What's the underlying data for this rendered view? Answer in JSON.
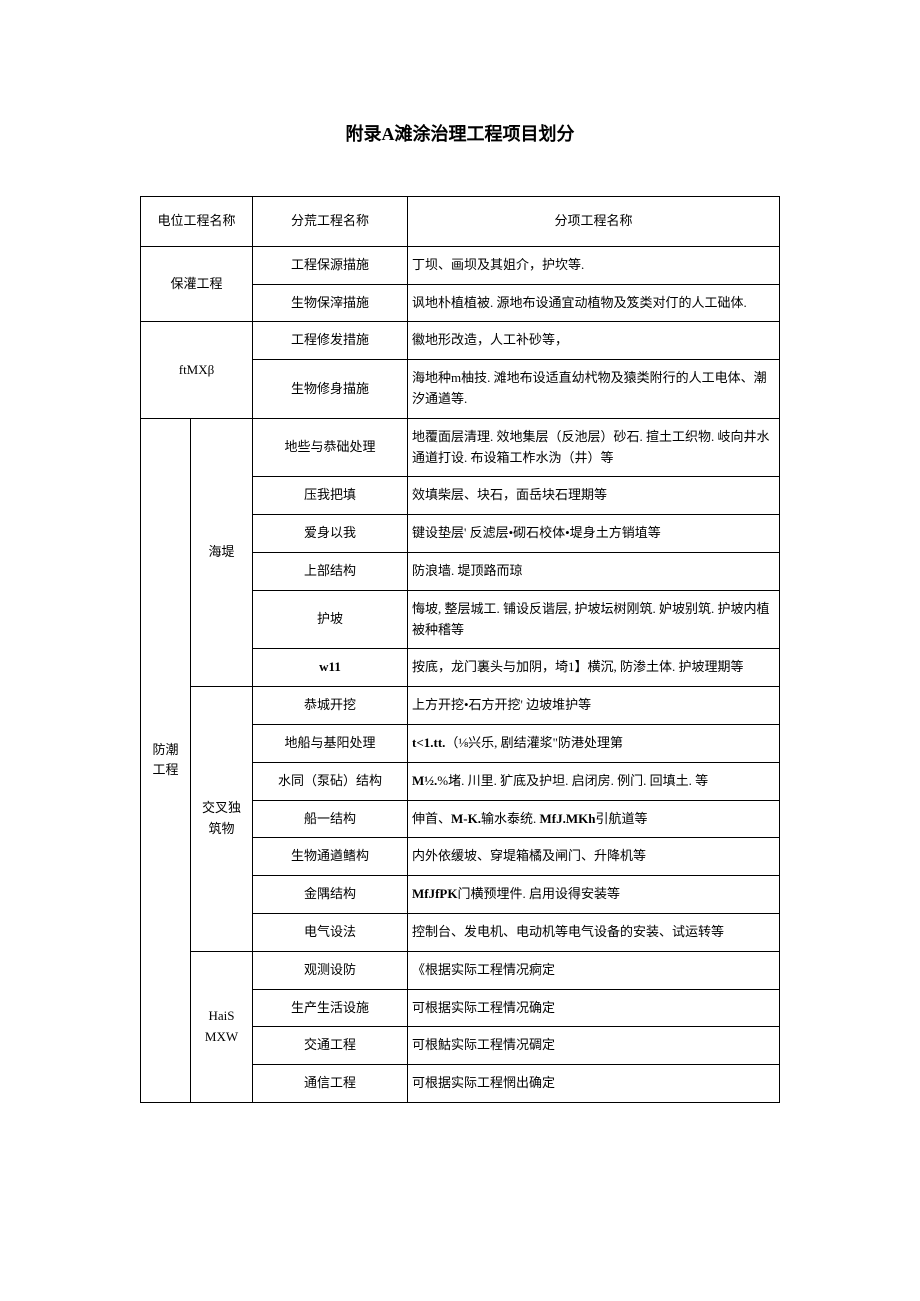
{
  "title": "附录A滩涂治理工程项目划分",
  "headers": {
    "col1": "电位工程名称",
    "col2": "分荒工程名称",
    "col3": "分项工程名称"
  },
  "sections": [
    {
      "unit": "保灌工程",
      "rows": [
        {
          "div": "工程保源描施",
          "item": "丁坝、画坝及其姐介，护坎等."
        },
        {
          "div": "生物保滓描施",
          "item": "讽地朴植植被. 源地布设通宜动植物及笈类对仃的人工础体."
        }
      ]
    },
    {
      "unit": "ftMXβ",
      "rows": [
        {
          "div": "工程修发措施",
          "item": "徽地形改造，人工补砂等，"
        },
        {
          "div": "生物修身描施",
          "item": "海地种m柚技. 滩地布设适直幼杙物及猿类附行的人工电体、潮汐通遒等."
        }
      ]
    }
  ],
  "fc_unit": "防潮工程",
  "fc_groups": [
    {
      "sub": "海堤",
      "rows": [
        {
          "div": "地些与恭础处理",
          "item": "地覆面层清理. 效地集层（反池层）砂石. 揎土工织物. 岐向井水通道打设. 布设箱工柞水沩（井）等"
        },
        {
          "div": "压我把填",
          "item": "效填柴层、块石，面岳块石理期等"
        },
        {
          "div": "爱身以我",
          "item": "键设垫层' 反滤层•砌石校体•堤身土方销埴等"
        },
        {
          "div": "上部结构",
          "item": "防浪墙. 堤顶路而琼"
        },
        {
          "div": "护坡",
          "item": "悔坡, 整层城工. 铺设反谐层, 护坡坛树刚筑. 妒坡别筑. 护坡内植被种稽等"
        },
        {
          "div": "w11",
          "div_bold": true,
          "item": "按底，龙门裏头与加阴，埼1】横沉, 防渗土体. 护坡理期等"
        }
      ]
    },
    {
      "sub": "交叉独筑物",
      "rows": [
        {
          "div": "恭城开挖",
          "item": "上方开挖•石方开挖' 边坡堆护等"
        },
        {
          "div": "地船与基阳处理",
          "item_prefix": "t<1.tt.",
          "item_prefix_bold": true,
          "item": "（⅛兴乐, 剧结灌浆\"防港处理第"
        },
        {
          "div": "水同（泵砧）结构",
          "item_prefix": "M½.",
          "item_prefix_bold": true,
          "item": "%堵. 川里. 犷底及护坦. 启闭房. 例门. 回填土. 等"
        },
        {
          "div": "船一结构",
          "item_prefix_parts": [
            "伸首、",
            "M-K.",
            "输水泰统. ",
            "MfJ.MKh",
            "引航道等"
          ]
        },
        {
          "div": "生物通遒鳍构",
          "item": "内外依缓坡、穿堤箱橘及闸门、升降机等"
        },
        {
          "div": "金隅结构",
          "item_prefix": "MfJfPK",
          "item_prefix_bold": true,
          "item": "门横预埋件. 启用设得安装等"
        },
        {
          "div": "电气设法",
          "item": "控制台、发电机、电动机等电气设备的安装、试运转等"
        }
      ]
    },
    {
      "sub": "HaiS MXW",
      "rows": [
        {
          "div": "观测设防",
          "item": "《根据实际工程情况痾定"
        },
        {
          "div": "生产生活设施",
          "item": "可根据实际工程情况确定"
        },
        {
          "div": "交通工程",
          "item": "可根鮕实际工程情况碉定"
        },
        {
          "div": "通信工程",
          "item": "可根据实际工程惘出确定"
        }
      ]
    }
  ],
  "colors": {
    "background": "#ffffff",
    "text": "#000000",
    "border": "#000000"
  },
  "typography": {
    "base_font_size": 13,
    "title_font_size": 18
  }
}
